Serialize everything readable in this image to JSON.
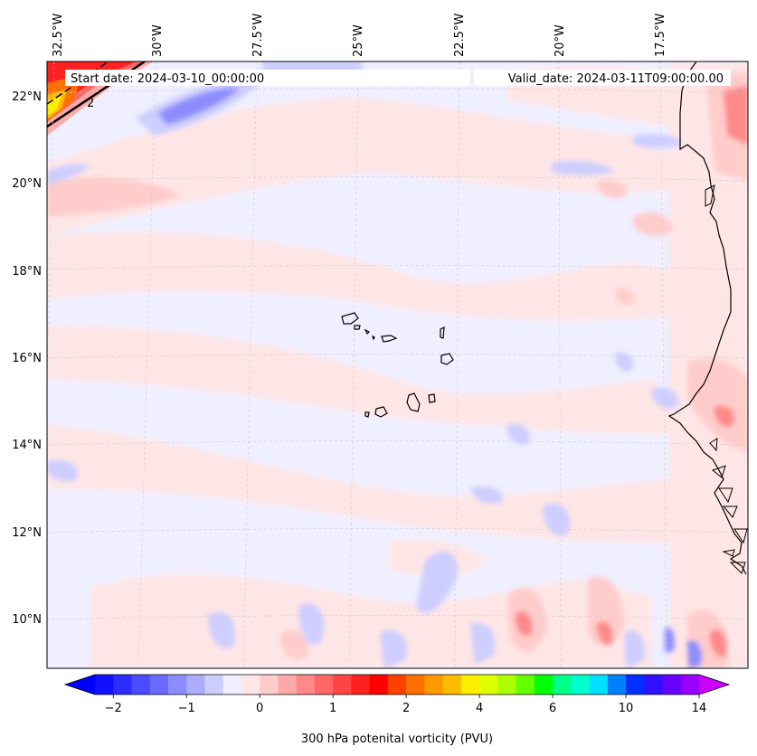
{
  "map": {
    "start_label": "Start date: 2024-03-10_00:00:00",
    "valid_label": "Valid_date: 2024-03-11T09:00:00.00",
    "lon_labels": [
      "32.5°W",
      "30°W",
      "27.5°W",
      "25°W",
      "22.5°W",
      "20°W",
      "17.5°W"
    ],
    "lat_labels": [
      "22°N",
      "20°N",
      "18°N",
      "16°N",
      "14°N",
      "12°N",
      "10°N"
    ],
    "contour_label": "2"
  },
  "colorbar": {
    "label": "300 hPa potenital vorticity (PVU)",
    "tick_labels": [
      "−2",
      "−1",
      "0",
      "1",
      "2",
      "4",
      "6",
      "10",
      "14"
    ],
    "colors": [
      "#1010ff",
      "#2c2cff",
      "#4a4aff",
      "#6a6aff",
      "#8c8cff",
      "#acacff",
      "#cdcdff",
      "#efefff",
      "#ffe6e6",
      "#ffcccc",
      "#ffaaaa",
      "#ff8888",
      "#ff6666",
      "#ff4444",
      "#ff2020",
      "#ff0000",
      "#ff4000",
      "#ff7000",
      "#ff9900",
      "#ffbb00",
      "#ffee00",
      "#ddff00",
      "#aaff00",
      "#66ff00",
      "#00ff00",
      "#00ff88",
      "#00ffcc",
      "#00e0ff",
      "#0080ff",
      "#0030ff",
      "#3010ff",
      "#6600ff",
      "#9900ff"
    ],
    "extend_min_color": "#0000ff",
    "extend_max_color": "#cc00ff"
  }
}
